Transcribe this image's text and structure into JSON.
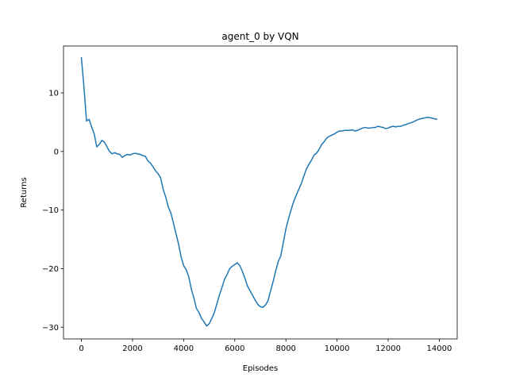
{
  "chart_data": {
    "type": "line",
    "title": "agent_0 by VQN",
    "xlabel": "Episodes",
    "ylabel": "Returns",
    "xlim": [
      -700,
      14700
    ],
    "ylim": [
      -32,
      18
    ],
    "xticks": [
      0,
      2000,
      4000,
      6000,
      8000,
      10000,
      12000,
      14000
    ],
    "yticks": [
      -30,
      -20,
      -10,
      0,
      10
    ],
    "xtick_labels": [
      "0",
      "2000",
      "4000",
      "6000",
      "8000",
      "10000",
      "12000",
      "14000"
    ],
    "ytick_labels": [
      "−30",
      "−20",
      "−10",
      "0",
      "10"
    ],
    "grid": false,
    "series": [
      {
        "name": "agent_0",
        "color": "#1f77b4",
        "x": [
          0,
          100,
          200,
          300,
          400,
          500,
          600,
          700,
          800,
          900,
          1000,
          1100,
          1200,
          1300,
          1400,
          1500,
          1600,
          1700,
          1800,
          1900,
          2000,
          2100,
          2200,
          2300,
          2400,
          2500,
          2600,
          2700,
          2800,
          2900,
          3000,
          3100,
          3200,
          3300,
          3400,
          3500,
          3600,
          3700,
          3800,
          3900,
          4000,
          4100,
          4200,
          4300,
          4400,
          4500,
          4600,
          4700,
          4800,
          4900,
          5000,
          5100,
          5200,
          5300,
          5400,
          5500,
          5600,
          5700,
          5800,
          5900,
          6000,
          6100,
          6200,
          6300,
          6400,
          6500,
          6600,
          6700,
          6800,
          6900,
          7000,
          7100,
          7200,
          7300,
          7400,
          7500,
          7600,
          7700,
          7800,
          7900,
          8000,
          8100,
          8200,
          8300,
          8400,
          8500,
          8600,
          8700,
          8800,
          8900,
          9000,
          9100,
          9200,
          9300,
          9400,
          9500,
          9600,
          9700,
          9800,
          9900,
          10000,
          10100,
          10200,
          10300,
          10400,
          10500,
          10600,
          10700,
          10800,
          10900,
          11000,
          11100,
          11200,
          11300,
          11400,
          11500,
          11600,
          11700,
          11800,
          11900,
          12000,
          12100,
          12200,
          12300,
          12400,
          12500,
          12600,
          12700,
          12800,
          12900,
          13000,
          13100,
          13200,
          13300,
          13400,
          13500,
          13600,
          13700,
          13800,
          13900
        ],
        "y": [
          16,
          11,
          5.2,
          5.5,
          4.2,
          3,
          0.8,
          1.2,
          1.9,
          1.6,
          0.8,
          0,
          -0.4,
          -0.2,
          -0.4,
          -0.5,
          -1,
          -0.7,
          -0.5,
          -0.6,
          -0.4,
          -0.3,
          -0.4,
          -0.5,
          -0.7,
          -0.8,
          -1.6,
          -2,
          -2.6,
          -3.3,
          -3.8,
          -4.5,
          -6.5,
          -7.8,
          -9.5,
          -10.5,
          -12.2,
          -14,
          -15.8,
          -18,
          -19.5,
          -20.2,
          -21.4,
          -23.5,
          -25,
          -26.8,
          -27.5,
          -28.5,
          -29.1,
          -29.8,
          -29.4,
          -28.5,
          -27.5,
          -26,
          -24.5,
          -23.2,
          -21.8,
          -21,
          -20,
          -19.6,
          -19.3,
          -19,
          -19.5,
          -20.5,
          -21.7,
          -23,
          -23.8,
          -24.6,
          -25.4,
          -26.1,
          -26.5,
          -26.6,
          -26.2,
          -25.5,
          -23.8,
          -22.2,
          -20.4,
          -18.8,
          -17.8,
          -15.5,
          -13.2,
          -11.5,
          -10,
          -8.6,
          -7.5,
          -6.5,
          -5.5,
          -4.2,
          -3,
          -2.2,
          -1.5,
          -0.6,
          -0.3,
          0.4,
          1.2,
          1.7,
          2.3,
          2.6,
          2.8,
          3,
          3.3,
          3.5,
          3.5,
          3.6,
          3.6,
          3.6,
          3.7,
          3.5,
          3.6,
          3.8,
          4,
          4.1,
          4,
          4,
          4.1,
          4.1,
          4.3,
          4.2,
          4.1,
          3.9,
          4,
          4.2,
          4.3,
          4.2,
          4.3,
          4.3,
          4.5,
          4.6,
          4.8,
          4.9,
          5.1,
          5.3,
          5.5,
          5.6,
          5.7,
          5.8,
          5.8,
          5.7,
          5.6,
          5.5
        ]
      }
    ]
  }
}
